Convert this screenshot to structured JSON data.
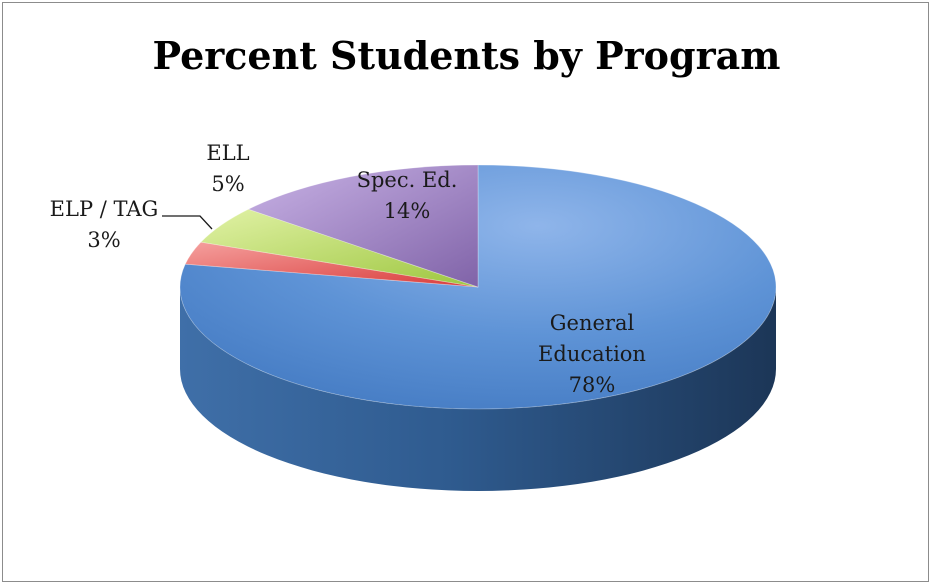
{
  "chart_data": {
    "type": "pie",
    "title": "Percent Students by Program",
    "slices": [
      {
        "label": "General Education",
        "label_lines": [
          "General",
          "Education",
          "78%"
        ],
        "value": 78,
        "color": "#4f81bd"
      },
      {
        "label": "ELP / TAG",
        "label_lines": [
          "ELP / TAG",
          "3%"
        ],
        "value": 3,
        "color": "#e04d4b"
      },
      {
        "label": "ELL",
        "label_lines": [
          "ELL",
          "5%"
        ],
        "value": 5,
        "color": "#9bbb59"
      },
      {
        "label": "Spec. Ed.",
        "label_lines": [
          "Spec. Ed.",
          "14%"
        ],
        "value": 14,
        "color": "#8064a2"
      }
    ],
    "style": "3d-pie",
    "legend": "none"
  }
}
